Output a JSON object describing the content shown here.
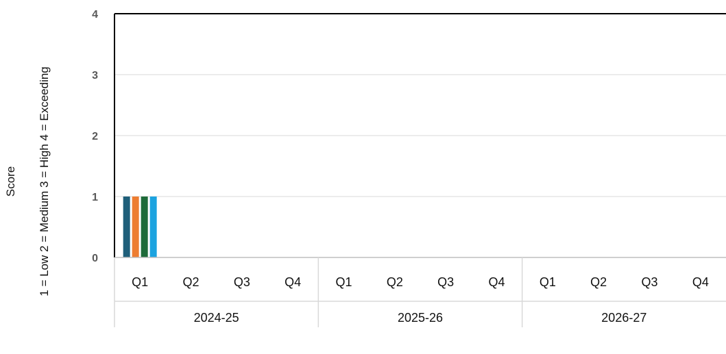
{
  "chart_data": {
    "type": "bar",
    "title": "",
    "ylabel_line1": "Score",
    "ylabel_line2": "1 = Low   2 = Medium   3 = High   4 = Exceeding",
    "ylim": [
      0,
      4
    ],
    "yticks": [
      "0",
      "1",
      "2",
      "3",
      "4"
    ],
    "groups": [
      {
        "label": "2024-25",
        "quarters": [
          "Q1",
          "Q2",
          "Q3",
          "Q4"
        ]
      },
      {
        "label": "2025-26",
        "quarters": [
          "Q1",
          "Q2",
          "Q3",
          "Q4"
        ]
      },
      {
        "label": "2026-27",
        "quarters": [
          "Q1",
          "Q2",
          "Q3",
          "Q4"
        ]
      }
    ],
    "series": [
      {
        "color": "#1f5f7a",
        "values": [
          1,
          0,
          0,
          0,
          0,
          0,
          0,
          0,
          0,
          0,
          0,
          0
        ]
      },
      {
        "color": "#ed7d31",
        "values": [
          1,
          0,
          0,
          0,
          0,
          0,
          0,
          0,
          0,
          0,
          0,
          0
        ]
      },
      {
        "color": "#1e6b3a",
        "values": [
          1,
          0,
          0,
          0,
          0,
          0,
          0,
          0,
          0,
          0,
          0,
          0
        ]
      },
      {
        "color": "#1ca3e0",
        "values": [
          1,
          0,
          0,
          0,
          0,
          0,
          0,
          0,
          0,
          0,
          0,
          0
        ]
      }
    ],
    "grid": true
  }
}
